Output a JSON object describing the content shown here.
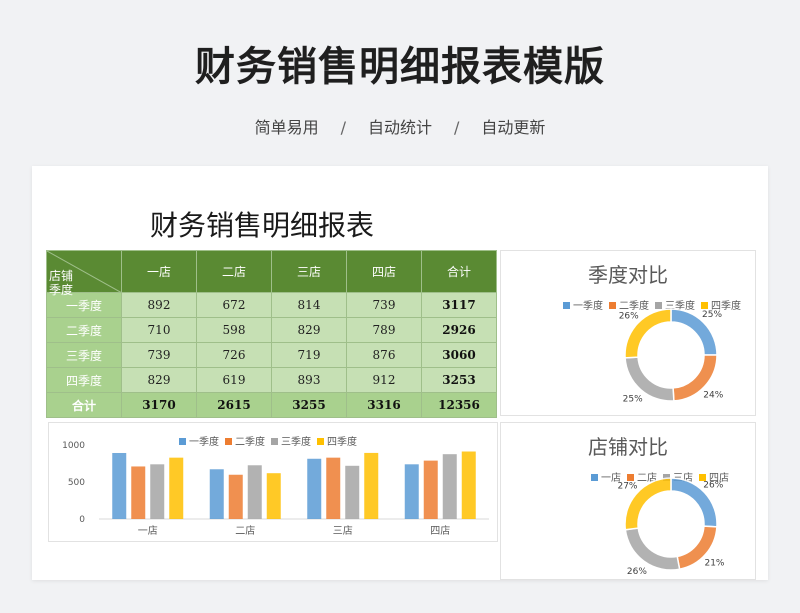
{
  "hero": {
    "title": "财务销售明细报表模版",
    "tags": [
      "简单易用",
      "自动统计",
      "自动更新"
    ],
    "separator": "/"
  },
  "sheet": {
    "title": "财务销售明细报表",
    "corner": [
      "店铺",
      "季度"
    ],
    "columns": [
      "一店",
      "二店",
      "三店",
      "四店",
      "合计"
    ],
    "rows": [
      {
        "label": "一季度",
        "values": [
          "892",
          "672",
          "814",
          "739",
          "3117"
        ]
      },
      {
        "label": "二季度",
        "values": [
          "710",
          "598",
          "829",
          "789",
          "2926"
        ]
      },
      {
        "label": "三季度",
        "values": [
          "739",
          "726",
          "719",
          "876",
          "3060"
        ]
      },
      {
        "label": "四季度",
        "values": [
          "829",
          "619",
          "893",
          "912",
          "3253"
        ]
      }
    ],
    "total_row": {
      "label": "合计",
      "values": [
        "3170",
        "2615",
        "3255",
        "3316",
        "12356"
      ]
    }
  },
  "colors": {
    "header_green": "#5a8a33",
    "cell_green": "#c6e0b4",
    "label_green": "#a9d18e",
    "series": [
      "#5b9bd5",
      "#ed7d31",
      "#a5a5a5",
      "#ffc000"
    ]
  },
  "chart_data": [
    {
      "type": "pie",
      "title": "季度对比",
      "labels": [
        "一季度",
        "二季度",
        "三季度",
        "四季度"
      ],
      "values": [
        25,
        24,
        25,
        26
      ],
      "data_labels": [
        "25%",
        "24%",
        "25%",
        "26%"
      ],
      "legend": "top"
    },
    {
      "type": "bar",
      "title": "",
      "categories": [
        "一店",
        "二店",
        "三店",
        "四店"
      ],
      "series": [
        {
          "name": "一季度",
          "values": [
            892,
            672,
            814,
            739
          ]
        },
        {
          "name": "二季度",
          "values": [
            710,
            598,
            829,
            789
          ]
        },
        {
          "name": "三季度",
          "values": [
            739,
            726,
            719,
            876
          ]
        },
        {
          "name": "四季度",
          "values": [
            829,
            619,
            893,
            912
          ]
        }
      ],
      "yticks": [
        "0",
        "500",
        "1000"
      ],
      "ylim": [
        0,
        1000
      ],
      "legend": "top"
    },
    {
      "type": "pie",
      "title": "店铺对比",
      "labels": [
        "一店",
        "二店",
        "三店",
        "四店"
      ],
      "values": [
        26,
        21,
        26,
        27
      ],
      "data_labels": [
        "26%",
        "21%",
        "26%",
        "27%"
      ],
      "legend": "top"
    }
  ]
}
